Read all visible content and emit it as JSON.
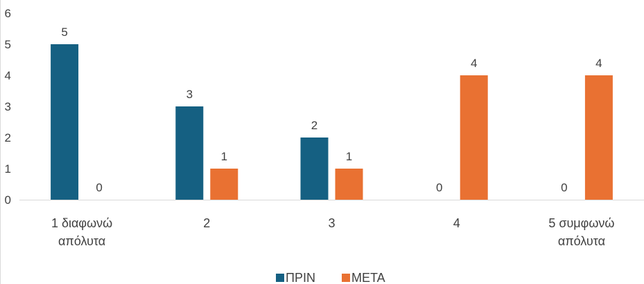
{
  "chart_data": {
    "type": "bar",
    "categories": [
      [
        "1 διαφωνώ",
        "απόλυτα"
      ],
      [
        "2"
      ],
      [
        "3"
      ],
      [
        "4"
      ],
      [
        "5 συμφωνώ",
        "απόλυτα"
      ]
    ],
    "series": [
      {
        "name": "ΠΡΙΝ",
        "color": "#156082",
        "values": [
          5,
          3,
          2,
          0,
          0
        ]
      },
      {
        "name": "ΜΕΤΑ",
        "color": "#E97132",
        "values": [
          0,
          1,
          1,
          4,
          4
        ]
      }
    ],
    "y_ticks": [
      0,
      1,
      2,
      3,
      4,
      5,
      6
    ],
    "ylim": [
      0,
      6
    ],
    "grid": false,
    "legend": "bottom"
  }
}
